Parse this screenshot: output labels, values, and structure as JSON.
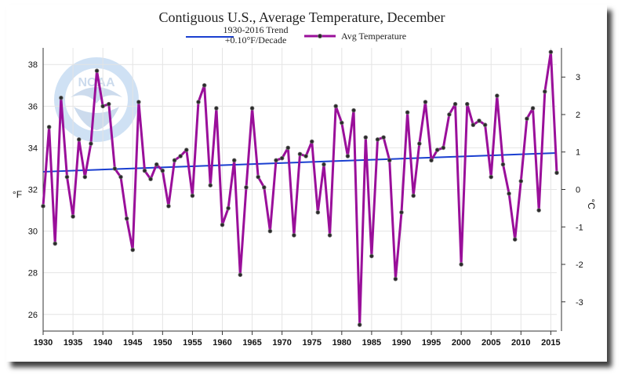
{
  "chart_data": {
    "type": "line",
    "title": "Contiguous U.S., Average Temperature, December",
    "ylabel": "°F",
    "y2label": "°C",
    "xlim": [
      1930,
      2016
    ],
    "ylim": [
      25.2,
      38.8
    ],
    "y2lim": [
      -3.78,
      3.78
    ],
    "x_ticks": [
      "1930",
      "1935",
      "1940",
      "1945",
      "1950",
      "1955",
      "1960",
      "1965",
      "1970",
      "1975",
      "1980",
      "1985",
      "1990",
      "1995",
      "2000",
      "2005",
      "2010",
      "2015"
    ],
    "y_ticks": [
      "26",
      "28",
      "30",
      "32",
      "34",
      "36",
      "38"
    ],
    "y2_ticks": [
      "-3",
      "-2",
      "-1",
      "0",
      "1",
      "2",
      "3"
    ],
    "grid": true,
    "legend_position": "top-center",
    "series": [
      {
        "name": "1930-2016 Trend\n+0.10°F/Decade",
        "color": "#1a3fd0",
        "type": "line",
        "x": [
          1930,
          2016
        ],
        "y": [
          32.85,
          33.75
        ]
      },
      {
        "name": "Avg Temperature",
        "color": "#9a0f9a",
        "type": "line-markers",
        "x": [
          1930,
          1931,
          1932,
          1933,
          1934,
          1935,
          1936,
          1937,
          1938,
          1939,
          1940,
          1941,
          1942,
          1943,
          1944,
          1945,
          1946,
          1947,
          1948,
          1949,
          1950,
          1951,
          1952,
          1953,
          1954,
          1955,
          1956,
          1957,
          1958,
          1959,
          1960,
          1961,
          1962,
          1963,
          1964,
          1965,
          1966,
          1967,
          1968,
          1969,
          1970,
          1971,
          1972,
          1973,
          1974,
          1975,
          1976,
          1977,
          1978,
          1979,
          1980,
          1981,
          1982,
          1983,
          1984,
          1985,
          1986,
          1987,
          1988,
          1989,
          1990,
          1991,
          1992,
          1993,
          1994,
          1995,
          1996,
          1997,
          1998,
          1999,
          2000,
          2001,
          2002,
          2003,
          2004,
          2005,
          2006,
          2007,
          2008,
          2009,
          2010,
          2011,
          2012,
          2013,
          2014,
          2015,
          2016
        ],
        "y": [
          31.2,
          35.0,
          29.4,
          36.4,
          32.6,
          30.7,
          34.4,
          32.6,
          34.2,
          37.7,
          36.0,
          36.1,
          33.0,
          32.6,
          30.6,
          29.1,
          36.2,
          32.9,
          32.5,
          33.2,
          32.9,
          31.2,
          33.4,
          33.6,
          33.9,
          31.7,
          36.2,
          37.0,
          32.2,
          35.9,
          30.3,
          31.1,
          33.4,
          27.9,
          32.1,
          35.9,
          32.6,
          32.1,
          30.0,
          33.4,
          33.5,
          34.0,
          29.8,
          33.7,
          33.6,
          34.3,
          30.9,
          33.2,
          29.8,
          36.0,
          35.2,
          33.6,
          35.8,
          25.5,
          34.5,
          28.8,
          34.4,
          34.5,
          33.4,
          27.7,
          30.9,
          35.7,
          31.7,
          34.2,
          36.2,
          33.4,
          33.9,
          34.0,
          35.6,
          36.1,
          28.4,
          36.1,
          35.1,
          35.3,
          35.1,
          32.6,
          36.5,
          33.2,
          31.8,
          29.6,
          32.4,
          35.4,
          35.9,
          31.0,
          36.7,
          38.6,
          32.8
        ]
      }
    ],
    "watermark": "NATIONAL OCEANIC AND ATMOSPHERIC ADMINISTRATION · NOAA · U.S. DEPARTMENT OF COMMERCE"
  }
}
